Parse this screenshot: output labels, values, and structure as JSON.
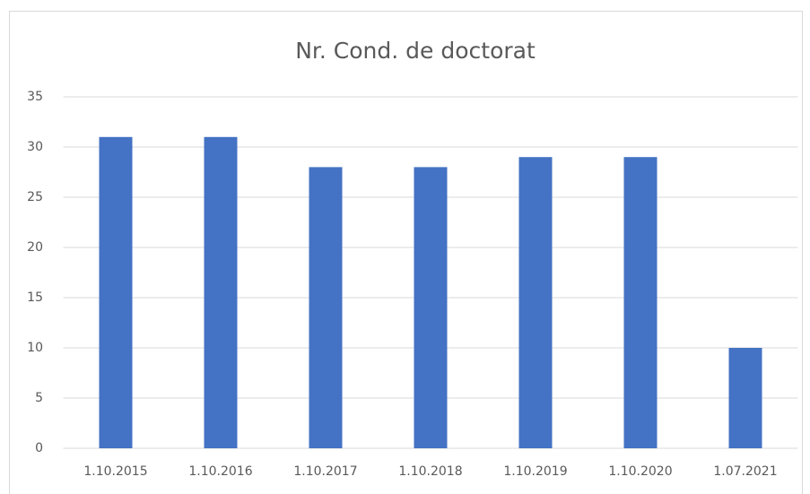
{
  "chart_data": {
    "type": "bar",
    "title": "Nr. Cond. de doctorat",
    "categories": [
      "1.10.2015",
      "1.10.2016",
      "1.10.2017",
      "1.10.2018",
      "1.10.2019",
      "1.10.2020",
      "1.07.2021"
    ],
    "values": [
      31,
      31,
      28,
      28,
      29,
      29,
      10
    ],
    "color": "#4472c4",
    "ylim": [
      0,
      35
    ],
    "yticks": [
      0,
      5,
      10,
      15,
      20,
      25,
      30,
      35
    ],
    "grid": true
  }
}
